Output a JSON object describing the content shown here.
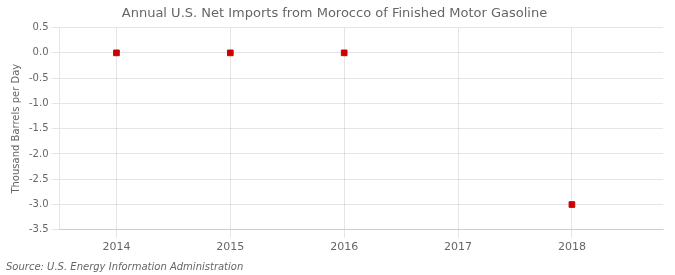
{
  "chart_data": {
    "type": "scatter",
    "title": "Annual U.S. Net Imports from Morocco of Finished Motor Gasoline",
    "ylabel": "Thousand Barrels per Day",
    "annotations": [
      "Source: U.S. Energy Information Administration"
    ],
    "x": [
      2014,
      2015,
      2016,
      2018
    ],
    "values": [
      0.0,
      0.0,
      0.0,
      -3.0
    ],
    "color": "#cc0000",
    "marker": "square",
    "xlim": [
      2013.5,
      2018.8
    ],
    "xticks": [
      2014,
      2015,
      2016,
      2017,
      2018
    ],
    "ylim": [
      -3.5,
      0.5
    ],
    "yticks": [
      0.5,
      {
        "value": 0.0,
        "label": "0.0"
      },
      -0.5,
      {
        "value": -1.0,
        "label": "-1.0"
      },
      -1.5,
      {
        "value": -2.0,
        "label": "-2.0"
      },
      -2.5,
      {
        "value": -3.0,
        "label": "-3.0"
      },
      -3.5
    ],
    "grid": true
  }
}
